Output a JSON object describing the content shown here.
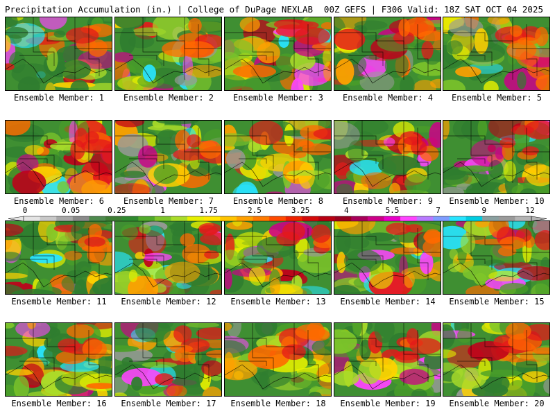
{
  "header": {
    "left": "Precipitation Accumulation (in.) | College of DuPage NEXLAB",
    "right": "00Z GEFS | F306 Valid: 18Z SAT OCT 04 2025"
  },
  "colorbar": {
    "tick_labels": [
      "0",
      "0.05",
      "0.25",
      "1",
      "1.75",
      "2.5",
      "3.25",
      "4",
      "5.5",
      "7",
      "9",
      "12"
    ],
    "colors": [
      "#e4e4e4",
      "#c8c8c8",
      "#a8a8a8",
      "#8a8a8a",
      "#4e8a4e",
      "#3e7e34",
      "#2f8a2f",
      "#4faa2a",
      "#7fc62a",
      "#aadc2a",
      "#e6f000",
      "#ffe600",
      "#ffc400",
      "#ffa000",
      "#ff7a00",
      "#ff4a00",
      "#ee2200",
      "#d40a0a",
      "#b80012",
      "#9a0020",
      "#a8005a",
      "#cc0088",
      "#e800c8",
      "#ff44ff",
      "#b87aff",
      "#7e9cff",
      "#28e4ff",
      "#00cce0",
      "#8aa0a0",
      "#9a9a9a",
      "#b4b4b4"
    ]
  },
  "members": [
    {
      "caption": "Ensemble Member: 1"
    },
    {
      "caption": "Ensemble Member: 2"
    },
    {
      "caption": "Ensemble Member: 3"
    },
    {
      "caption": "Ensemble Member: 4"
    },
    {
      "caption": "Ensemble Member: 5"
    },
    {
      "caption": "Ensemble Member: 6"
    },
    {
      "caption": "Ensemble Member: 7"
    },
    {
      "caption": "Ensemble Member: 8"
    },
    {
      "caption": "Ensemble Member: 9"
    },
    {
      "caption": "Ensemble Member: 10"
    },
    {
      "caption": "Ensemble Member: 11"
    },
    {
      "caption": "Ensemble Member: 12"
    },
    {
      "caption": "Ensemble Member: 13"
    },
    {
      "caption": "Ensemble Member: 14"
    },
    {
      "caption": "Ensemble Member: 15"
    },
    {
      "caption": "Ensemble Member: 16"
    },
    {
      "caption": "Ensemble Member: 17"
    },
    {
      "caption": "Ensemble Member: 18"
    },
    {
      "caption": "Ensemble Member: 19"
    },
    {
      "caption": "Ensemble Member: 20"
    }
  ]
}
